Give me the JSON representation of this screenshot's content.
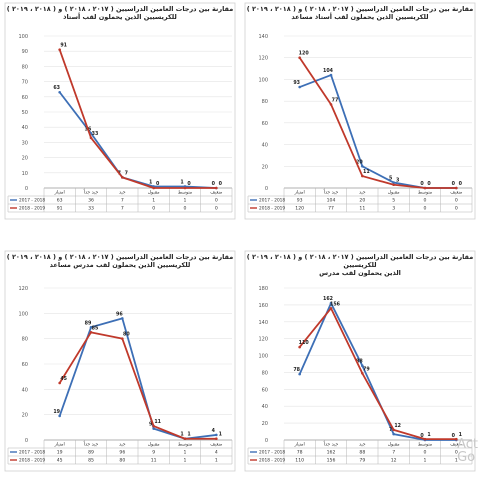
{
  "series_colors": [
    "#3d6fb6",
    "#c0392b"
  ],
  "watermark": [
    "Act",
    "Go"
  ],
  "chart_data": [
    {
      "type": "line",
      "title": [
        "مقارنة بين درجات العامين الدراسيين ( ٢٠١٧ ، ٢٠١٨ ) و ( ٢٠١٨ ، ٢٠١٩ )",
        "للكريسيين الذين يحملون لقب أستاذ"
      ],
      "categories": [
        "امتياز",
        "جيد جداً",
        "جيد",
        "مقبول",
        "متوسط",
        "ضعيف"
      ],
      "ylim": [
        0,
        100
      ],
      "yticks": [
        0,
        10,
        20,
        30,
        40,
        50,
        60,
        70,
        80,
        90,
        100
      ],
      "series": [
        {
          "name": "2017 - 2018",
          "values": [
            63,
            36,
            7,
            1,
            1,
            0
          ]
        },
        {
          "name": "2018 - 2019",
          "values": [
            91,
            33,
            7,
            0,
            0,
            0
          ]
        }
      ]
    },
    {
      "type": "line",
      "title": [
        "مقارنة بين درجات العامين الدراسيين ( ٢٠١٧ ، ٢٠١٨ ) و ( ٢٠١٨ ، ٢٠١٩ )",
        "للكريسيين الذين يحملون لقب أستاذ مساعد"
      ],
      "categories": [
        "امتياز",
        "جيد جداً",
        "جيد",
        "مقبول",
        "متوسط",
        "ضعيف"
      ],
      "ylim": [
        0,
        140
      ],
      "yticks": [
        0,
        20,
        40,
        60,
        80,
        100,
        120,
        140
      ],
      "series": [
        {
          "name": "2017 - 2018",
          "values": [
            93,
            104,
            20,
            5,
            0,
            0
          ]
        },
        {
          "name": "2018 - 2019",
          "values": [
            120,
            77,
            11,
            3,
            0,
            0
          ]
        }
      ]
    },
    {
      "type": "line",
      "title": [
        "مقارنة بين درجات العامين الدراسيين ( ٢٠١٧ ، ٢٠١٨ ) و ( ٢٠١٨ ، ٢٠١٩ )",
        "للكريسيين الذين يحملون لقب مدرس مساعد"
      ],
      "categories": [
        "امتياز",
        "جيد جداً",
        "جيد",
        "مقبول",
        "متوسط",
        "ضعيف"
      ],
      "ylim": [
        0,
        120
      ],
      "yticks": [
        0,
        20,
        40,
        60,
        80,
        100,
        120
      ],
      "series": [
        {
          "name": "2017 - 2018",
          "values": [
            19,
            89,
            96,
            9,
            1,
            4
          ]
        },
        {
          "name": "2018 - 2019",
          "values": [
            45,
            85,
            80,
            11,
            1,
            1
          ]
        }
      ]
    },
    {
      "type": "line",
      "title": [
        "مقارنة بين درجات العامين الدراسيين ( ٢٠١٧ ، ٢٠١٨ ) و ( ٢٠١٨ ، ٢٠١٩ ) للكريسيين",
        "الذين يحملون لقب مدرس"
      ],
      "categories": [
        "امتياز",
        "جيد جداً",
        "جيد",
        "مقبول",
        "متوسط",
        "ضعيف"
      ],
      "ylim": [
        0,
        180
      ],
      "yticks": [
        0,
        20,
        40,
        60,
        80,
        100,
        120,
        140,
        160,
        180
      ],
      "series": [
        {
          "name": "2017 - 2018",
          "values": [
            78,
            162,
            88,
            7,
            0,
            0
          ]
        },
        {
          "name": "2018 - 2019",
          "values": [
            110,
            156,
            79,
            12,
            1,
            1
          ]
        }
      ]
    }
  ]
}
